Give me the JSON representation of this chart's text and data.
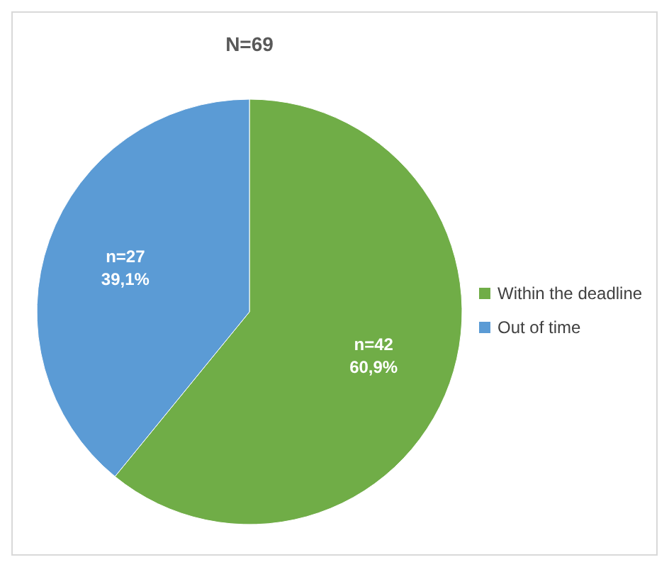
{
  "chart_data": {
    "type": "pie",
    "title": "N=69",
    "categories": [
      "Within the deadline",
      "Out of time"
    ],
    "values": [
      60.9,
      39.1
    ],
    "colors": [
      "#70ad47",
      "#5b9bd5"
    ],
    "value_labels": [
      "n=42\n60,9%",
      "n=27\n39,1%"
    ],
    "legend": "right"
  }
}
